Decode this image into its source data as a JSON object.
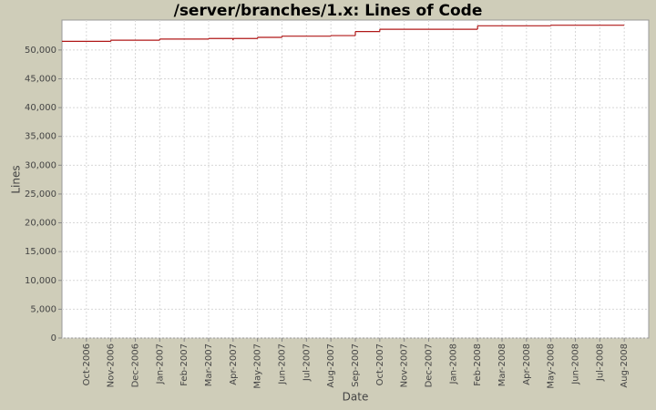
{
  "chart_data": {
    "type": "line",
    "title": "/server/branches/1.x:  Lines of Code",
    "x_label": "Date",
    "y_label": "Lines",
    "x": [
      "2006-09",
      "2006-11",
      "2007-01",
      "2007-03",
      "2007-04",
      "2007-04",
      "2007-05",
      "2007-06",
      "2007-08",
      "2007-09",
      "2007-10",
      "2008-02",
      "2008-05",
      "2008-08"
    ],
    "series": [
      {
        "name": "Lines",
        "color": "#b01818",
        "values": [
          51500,
          51700,
          51900,
          52000,
          51700,
          52000,
          52200,
          52400,
          52500,
          53200,
          53600,
          54200,
          54300,
          54300
        ]
      }
    ],
    "xlim": [
      "2006-09",
      "2008-09"
    ],
    "xticks": [
      {
        "value": "2006-10",
        "label": "Oct-2006"
      },
      {
        "value": "2006-11",
        "label": "Nov-2006"
      },
      {
        "value": "2006-12",
        "label": "Dec-2006"
      },
      {
        "value": "2007-01",
        "label": "Jan-2007"
      },
      {
        "value": "2007-02",
        "label": "Feb-2007"
      },
      {
        "value": "2007-03",
        "label": "Mar-2007"
      },
      {
        "value": "2007-04",
        "label": "Apr-2007"
      },
      {
        "value": "2007-05",
        "label": "May-2007"
      },
      {
        "value": "2007-06",
        "label": "Jun-2007"
      },
      {
        "value": "2007-07",
        "label": "Jul-2007"
      },
      {
        "value": "2007-08",
        "label": "Aug-2007"
      },
      {
        "value": "2007-09",
        "label": "Sep-2007"
      },
      {
        "value": "2007-10",
        "label": "Oct-2007"
      },
      {
        "value": "2007-11",
        "label": "Nov-2007"
      },
      {
        "value": "2007-12",
        "label": "Dec-2007"
      },
      {
        "value": "2008-01",
        "label": "Jan-2008"
      },
      {
        "value": "2008-02",
        "label": "Feb-2008"
      },
      {
        "value": "2008-03",
        "label": "Mar-2008"
      },
      {
        "value": "2008-04",
        "label": "Apr-2008"
      },
      {
        "value": "2008-05",
        "label": "May-2008"
      },
      {
        "value": "2008-06",
        "label": "Jun-2008"
      },
      {
        "value": "2008-07",
        "label": "Jul-2008"
      },
      {
        "value": "2008-08",
        "label": "Aug-2008"
      }
    ],
    "ylim": [
      0,
      55200
    ],
    "yticks": [
      0,
      {
        "value": 5000,
        "label": "5,000"
      },
      {
        "value": 10000,
        "label": "10,000"
      },
      {
        "value": 15000,
        "label": "15,000"
      },
      {
        "value": 20000,
        "label": "20,000"
      },
      {
        "value": 25000,
        "label": "25,000"
      },
      {
        "value": 30000,
        "label": "30,000"
      },
      {
        "value": 35000,
        "label": "35,000"
      },
      {
        "value": 40000,
        "label": "40,000"
      },
      {
        "value": 45000,
        "label": "45,000"
      },
      {
        "value": 50000,
        "label": "50,000"
      }
    ],
    "grid": true
  }
}
